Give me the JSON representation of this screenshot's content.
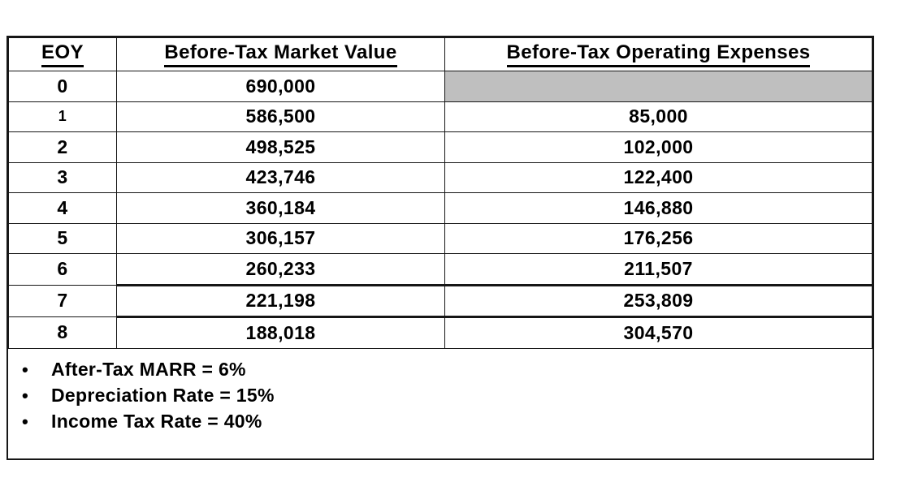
{
  "table": {
    "headers": [
      "EOY",
      "Before-Tax Market Value",
      "Before-Tax Operating Expenses"
    ],
    "rows": [
      {
        "eoy": "0",
        "market_value": "690,000",
        "operating_expenses": ""
      },
      {
        "eoy": "1",
        "market_value": "586,500",
        "operating_expenses": "85,000"
      },
      {
        "eoy": "2",
        "market_value": "498,525",
        "operating_expenses": "102,000"
      },
      {
        "eoy": "3",
        "market_value": "423,746",
        "operating_expenses": "122,400"
      },
      {
        "eoy": "4",
        "market_value": "360,184",
        "operating_expenses": "146,880"
      },
      {
        "eoy": "5",
        "market_value": "306,157",
        "operating_expenses": "176,256"
      },
      {
        "eoy": "6",
        "market_value": "260,233",
        "operating_expenses": "211,507"
      },
      {
        "eoy": "7",
        "market_value": "221,198",
        "operating_expenses": "253,809"
      },
      {
        "eoy": "8",
        "market_value": "188,018",
        "operating_expenses": "304,570"
      }
    ]
  },
  "notes": {
    "bullet_glyph": "•",
    "items": [
      "After-Tax MARR = 6%",
      "Depreciation Rate = 15%",
      "Income Tax Rate = 40%"
    ]
  },
  "colors": {
    "shaded_cell": "#bfbfbf",
    "border": "#161616",
    "text": "#000000",
    "background": "#ffffff"
  }
}
